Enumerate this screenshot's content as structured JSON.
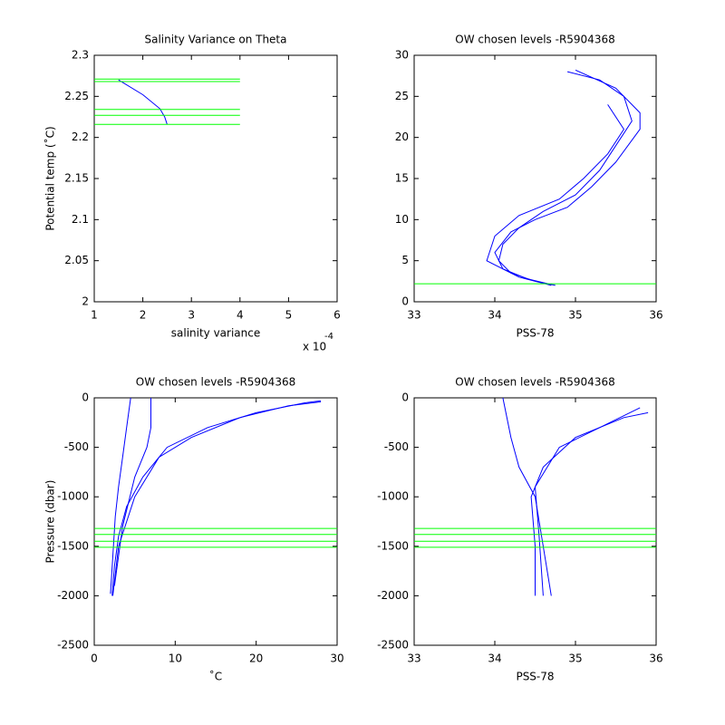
{
  "chart_data": [
    {
      "type": "line",
      "title": "Salinity Variance on Theta",
      "xlabel": "salinity variance",
      "ylabel": "Potential temp (˚C)",
      "annotation": {
        "text": "x 10",
        "exponent": "-4"
      },
      "xlim": [
        1,
        6
      ],
      "xticks": [
        1,
        2,
        3,
        4,
        5,
        6
      ],
      "ylim": [
        2,
        2.3
      ],
      "yticks": [
        2,
        2.05,
        2.1,
        2.15,
        2.2,
        2.25,
        2.3
      ],
      "series": [
        {
          "color": "#0000ff",
          "x": [
            1.5,
            2.0,
            2.35,
            2.45,
            2.5
          ],
          "y": [
            2.27,
            2.252,
            2.235,
            2.225,
            2.216
          ]
        },
        {
          "color": "#00ff00",
          "x": [
            1,
            4
          ],
          "y": [
            2.271,
            2.271
          ]
        },
        {
          "color": "#00ff00",
          "x": [
            1,
            4
          ],
          "y": [
            2.268,
            2.268
          ]
        },
        {
          "color": "#00ff00",
          "x": [
            1,
            4
          ],
          "y": [
            2.234,
            2.234
          ]
        },
        {
          "color": "#00ff00",
          "x": [
            1,
            4
          ],
          "y": [
            2.227,
            2.227
          ]
        },
        {
          "color": "#00ff00",
          "x": [
            1,
            4
          ],
          "y": [
            2.216,
            2.216
          ]
        }
      ]
    },
    {
      "type": "line",
      "title": "OW chosen levels -R5904368",
      "xlabel": "PSS-78",
      "xlim": [
        33,
        36
      ],
      "xticks": [
        33,
        34,
        35,
        36
      ],
      "ylim": [
        0,
        30
      ],
      "yticks": [
        0,
        5,
        10,
        15,
        20,
        25,
        30
      ],
      "series": [
        {
          "color": "#0000ff",
          "x": [
            34.75,
            34.5,
            34.2,
            34.05,
            34.1,
            34.3,
            34.6,
            35.0,
            35.3,
            35.5,
            35.7,
            35.6,
            35.3,
            34.9
          ],
          "y": [
            2,
            2.5,
            3.5,
            5,
            7,
            9,
            11,
            13,
            16,
            19,
            22,
            25,
            27,
            28
          ]
        },
        {
          "color": "#0000ff",
          "x": [
            34.7,
            34.4,
            34.1,
            34.0,
            34.2,
            34.5,
            34.9,
            35.2,
            35.5,
            35.8,
            35.8,
            35.5,
            35.0
          ],
          "y": [
            2.1,
            2.8,
            4,
            6,
            8.5,
            10,
            11.5,
            14,
            17,
            21,
            23,
            26,
            28.2
          ]
        },
        {
          "color": "#0000ff",
          "x": [
            34.7,
            34.3,
            33.9,
            34.0,
            34.3,
            34.8,
            35.1,
            35.4,
            35.6,
            35.4
          ],
          "y": [
            2,
            3,
            5,
            8,
            10.5,
            12.5,
            15,
            18,
            21,
            24
          ]
        },
        {
          "color": "#00ff00",
          "x": [
            33,
            36
          ],
          "y": [
            2.2,
            2.2
          ]
        }
      ]
    },
    {
      "type": "line",
      "title": "OW chosen levels -R5904368",
      "xlabel": "˚C",
      "ylabel": "Pressure (dbar)",
      "xlim": [
        0,
        30
      ],
      "xticks": [
        0,
        10,
        20,
        30
      ],
      "ylim": [
        -2500,
        0
      ],
      "yticks": [
        -2500,
        -2000,
        -1500,
        -1000,
        -500,
        0
      ],
      "series": [
        {
          "color": "#0000ff",
          "x": [
            2.2,
            2.5,
            3,
            4,
            6,
            9,
            14,
            20,
            26,
            28
          ],
          "y": [
            -2000,
            -1700,
            -1400,
            -1100,
            -800,
            -500,
            -300,
            -150,
            -50,
            -30
          ]
        },
        {
          "color": "#0000ff",
          "x": [
            2.0,
            2.3,
            2.6,
            3,
            3.5,
            4,
            4.5
          ],
          "y": [
            -1980,
            -1600,
            -1200,
            -900,
            -600,
            -300,
            0
          ]
        },
        {
          "color": "#0000ff",
          "x": [
            2.3,
            3,
            5,
            8,
            12,
            18,
            24,
            28
          ],
          "y": [
            -2000,
            -1500,
            -1000,
            -600,
            -400,
            -200,
            -80,
            -40
          ]
        },
        {
          "color": "#0000ff",
          "x": [
            2.5,
            3.5,
            5,
            6.5,
            7,
            7
          ],
          "y": [
            -1900,
            -1300,
            -800,
            -500,
            -300,
            0
          ]
        },
        {
          "color": "#00ff00",
          "x": [
            0,
            30
          ],
          "y": [
            -1320,
            -1320
          ]
        },
        {
          "color": "#00ff00",
          "x": [
            0,
            30
          ],
          "y": [
            -1380,
            -1380
          ]
        },
        {
          "color": "#00ff00",
          "x": [
            0,
            30
          ],
          "y": [
            -1450,
            -1450
          ]
        },
        {
          "color": "#00ff00",
          "x": [
            0,
            30
          ],
          "y": [
            -1510,
            -1510
          ]
        }
      ]
    },
    {
      "type": "line",
      "title": "OW chosen levels -R5904368",
      "xlabel": "PSS-78",
      "xlim": [
        33,
        36
      ],
      "xticks": [
        33,
        34,
        35,
        36
      ],
      "ylim": [
        -2500,
        0
      ],
      "yticks": [
        -2500,
        -2000,
        -1500,
        -1000,
        -500,
        0
      ],
      "series": [
        {
          "color": "#0000ff",
          "x": [
            34.7,
            34.6,
            34.5,
            34.3,
            34.2,
            34.1
          ],
          "y": [
            -2000,
            -1500,
            -1000,
            -700,
            -400,
            0
          ]
        },
        {
          "color": "#0000ff",
          "x": [
            34.5,
            34.5,
            34.45,
            34.6,
            35.0,
            35.6,
            35.9
          ],
          "y": [
            -2000,
            -1500,
            -1000,
            -700,
            -400,
            -200,
            -150
          ]
        },
        {
          "color": "#0000ff",
          "x": [
            34.6,
            34.55,
            34.5,
            34.8,
            35.3,
            35.8
          ],
          "y": [
            -2000,
            -1400,
            -900,
            -500,
            -300,
            -100
          ]
        },
        {
          "color": "#00ff00",
          "x": [
            33,
            36
          ],
          "y": [
            -1320,
            -1320
          ]
        },
        {
          "color": "#00ff00",
          "x": [
            33,
            36
          ],
          "y": [
            -1380,
            -1380
          ]
        },
        {
          "color": "#00ff00",
          "x": [
            33,
            36
          ],
          "y": [
            -1450,
            -1450
          ]
        },
        {
          "color": "#00ff00",
          "x": [
            33,
            36
          ],
          "y": [
            -1510,
            -1510
          ]
        }
      ]
    }
  ]
}
